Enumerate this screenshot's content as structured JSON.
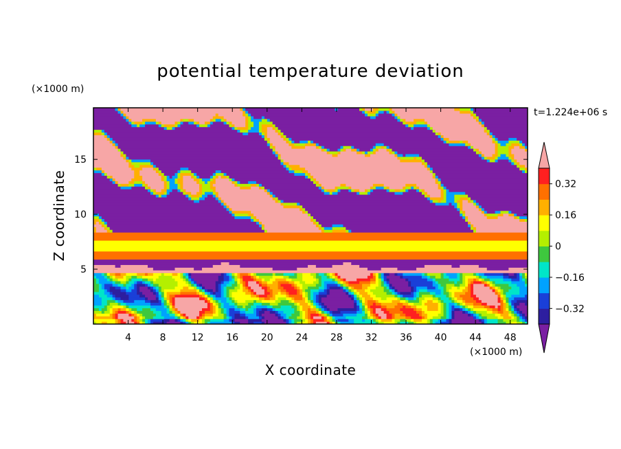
{
  "chart_data": {
    "type": "heatmap",
    "title": "potential temperature deviation",
    "time_label": "t=1.224e+06 s",
    "xlabel": "X coordinate",
    "ylabel": "Z coordinate",
    "x_unit": "(×1000 m)",
    "y_unit": "(×1000 m)",
    "xlim": [
      0,
      50
    ],
    "ylim": [
      0,
      19.7
    ],
    "x_ticks": [
      4,
      8,
      12,
      16,
      20,
      24,
      28,
      32,
      36,
      40,
      44,
      48
    ],
    "y_ticks": [
      5,
      10,
      15
    ],
    "colorbar": {
      "min": -0.4,
      "max": 0.4,
      "step": 0.08,
      "tick_values": [
        0.32,
        0.16,
        0,
        -0.16,
        -0.32
      ],
      "tick_labels": [
        "0.32",
        "0.16",
        "0",
        "−0.16",
        "−0.32"
      ],
      "extend": "both",
      "colors": [
        "#7a1fa2",
        "#2d1e9f",
        "#1a3fd8",
        "#00a2ff",
        "#00e5c8",
        "#3ec83e",
        "#b4ef00",
        "#ffff00",
        "#ffb000",
        "#ff7000",
        "#ff2020",
        "#f7a6a6"
      ]
    },
    "regions": [
      {
        "z_range": [
          0,
          4.8
        ],
        "description_values": "mixed range -0.4 to 0.4"
      },
      {
        "z_range": [
          4.8,
          6.0
        ],
        "value": 0.45
      },
      {
        "z_range": [
          6.0,
          6.6
        ],
        "value": 0.3
      },
      {
        "z_range": [
          6.6,
          7.6
        ],
        "value": 0.15
      },
      {
        "z_range": [
          7.6,
          8.4
        ],
        "value": 0.3
      },
      {
        "z_range": [
          8.4,
          19.7
        ],
        "description_values": "alternating -0.45 and 0.45 layers"
      }
    ]
  }
}
